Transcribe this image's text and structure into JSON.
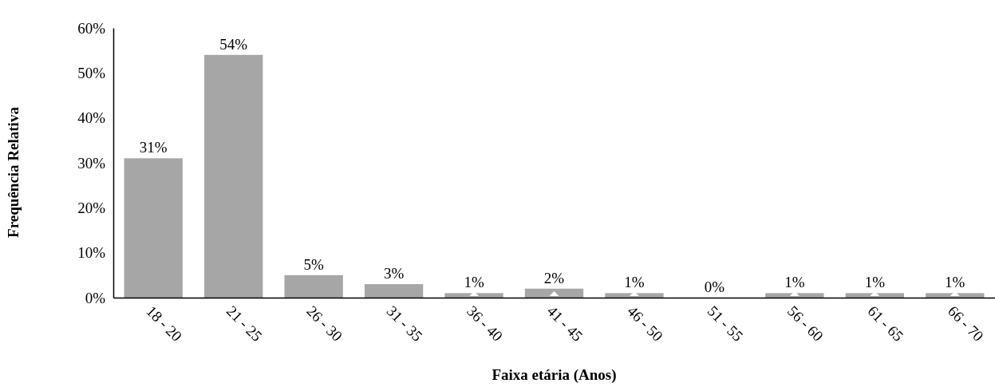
{
  "chart_data": {
    "type": "bar",
    "xlabel": "Faixa etária (Anos)",
    "ylabel": "Frequência Relativa",
    "categories": [
      "18 - 20",
      "21 - 25",
      "26 - 30",
      "31 - 35",
      "36 - 40",
      "41 - 45",
      "46 - 50",
      "51 - 55",
      "56 - 60",
      "61 - 65",
      "66 - 70"
    ],
    "values": [
      31,
      54,
      5,
      3,
      1,
      2,
      1,
      0,
      1,
      1,
      1
    ],
    "value_labels": [
      "31%",
      "54%",
      "5%",
      "3%",
      "1%",
      "2%",
      "1%",
      "0%",
      "1%",
      "1%",
      "1%"
    ],
    "color": "#a6a6a6",
    "ylim": [
      0,
      60
    ],
    "yticks": [
      {
        "value": 0,
        "label": "0%"
      },
      {
        "value": 10,
        "label": "10%"
      },
      {
        "value": 20,
        "label": "20%"
      },
      {
        "value": 30,
        "label": "30%"
      },
      {
        "value": 40,
        "label": "40%"
      },
      {
        "value": 50,
        "label": "50%"
      },
      {
        "value": 60,
        "label": "60%"
      }
    ],
    "grid": false
  }
}
